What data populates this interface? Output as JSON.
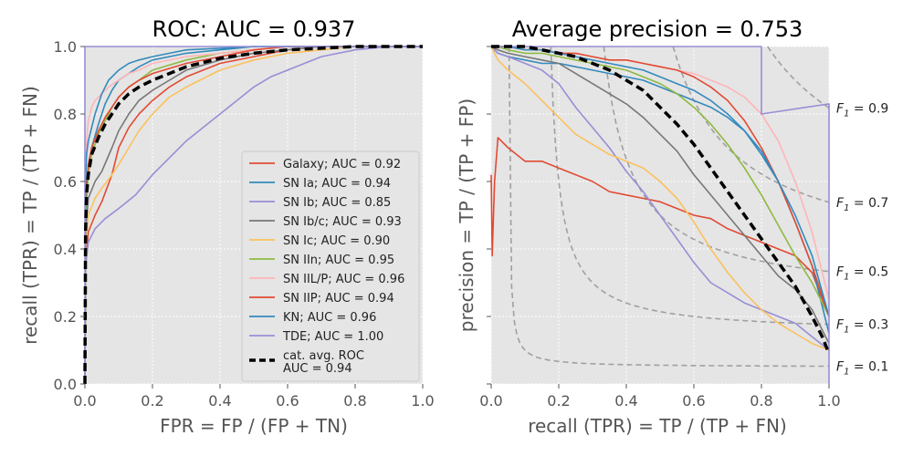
{
  "chart_data": [
    {
      "type": "line",
      "title": "ROC: AUC = 0.937",
      "xlabel": "FPR = FP / (FP + TN)",
      "ylabel": "recall (TPR) = TP / (TP + FN)",
      "xlim": [
        0,
        1
      ],
      "ylim": [
        0,
        1
      ],
      "xticks": [
        "0.0",
        "0.2",
        "0.4",
        "0.6",
        "0.8",
        "1.0"
      ],
      "yticks": [
        "0.0",
        "0.2",
        "0.4",
        "0.6",
        "0.8",
        "1.0"
      ],
      "grid": true,
      "legend": "lower-right",
      "series": [
        {
          "name": "Galaxy; AUC = 0.92",
          "color": "#E24A33",
          "x": [
            0,
            0.002,
            0.01,
            0.03,
            0.05,
            0.08,
            0.1,
            0.13,
            0.16,
            0.2,
            0.25,
            0.3,
            0.4,
            0.5,
            0.6,
            0.7,
            0.8,
            0.9,
            1.0
          ],
          "y": [
            0,
            0.35,
            0.45,
            0.5,
            0.54,
            0.62,
            0.7,
            0.76,
            0.8,
            0.84,
            0.88,
            0.91,
            0.95,
            0.97,
            0.99,
            1.0,
            1.0,
            1.0,
            1.0
          ]
        },
        {
          "name": "SN Ia; AUC = 0.94",
          "color": "#348ABD",
          "x": [
            0,
            0.002,
            0.01,
            0.02,
            0.04,
            0.06,
            0.08,
            0.1,
            0.13,
            0.16,
            0.2,
            0.3,
            0.4,
            0.5,
            0.6,
            0.8,
            1.0
          ],
          "y": [
            0,
            0.5,
            0.63,
            0.7,
            0.77,
            0.83,
            0.87,
            0.9,
            0.92,
            0.94,
            0.96,
            0.98,
            0.99,
            1.0,
            1.0,
            1.0,
            1.0
          ]
        },
        {
          "name": "SN Ib; AUC = 0.85",
          "color": "#988ED5",
          "x": [
            0,
            0.002,
            0.01,
            0.03,
            0.06,
            0.1,
            0.15,
            0.2,
            0.25,
            0.3,
            0.35,
            0.4,
            0.45,
            0.5,
            0.55,
            0.6,
            0.7,
            0.8,
            0.9,
            1.0
          ],
          "y": [
            0,
            0.35,
            0.42,
            0.46,
            0.49,
            0.52,
            0.56,
            0.62,
            0.67,
            0.72,
            0.76,
            0.8,
            0.84,
            0.88,
            0.91,
            0.93,
            0.97,
            0.99,
            1.0,
            1.0
          ]
        },
        {
          "name": "SN Ib/c; AUC = 0.93",
          "color": "#777777",
          "x": [
            0,
            0.002,
            0.01,
            0.03,
            0.05,
            0.08,
            0.1,
            0.13,
            0.16,
            0.2,
            0.25,
            0.3,
            0.4,
            0.5,
            0.6,
            0.7,
            0.8,
            1.0
          ],
          "y": [
            0,
            0.45,
            0.55,
            0.6,
            0.63,
            0.7,
            0.75,
            0.8,
            0.84,
            0.87,
            0.9,
            0.93,
            0.96,
            0.98,
            0.99,
            1.0,
            1.0,
            1.0
          ]
        },
        {
          "name": "SN Ic; AUC = 0.90",
          "color": "#FBC15E",
          "x": [
            0,
            0.002,
            0.01,
            0.03,
            0.05,
            0.08,
            0.1,
            0.13,
            0.16,
            0.2,
            0.25,
            0.3,
            0.4,
            0.5,
            0.6,
            0.7,
            0.8,
            0.9,
            1.0
          ],
          "y": [
            0,
            0.4,
            0.5,
            0.55,
            0.58,
            0.62,
            0.65,
            0.7,
            0.75,
            0.8,
            0.85,
            0.88,
            0.93,
            0.96,
            0.98,
            0.99,
            1.0,
            1.0,
            1.0
          ]
        },
        {
          "name": "SN IIn; AUC = 0.95",
          "color": "#8EBA42",
          "x": [
            0,
            0.002,
            0.01,
            0.02,
            0.04,
            0.06,
            0.08,
            0.1,
            0.13,
            0.16,
            0.2,
            0.3,
            0.4,
            0.5,
            0.6,
            0.8,
            1.0
          ],
          "y": [
            0,
            0.5,
            0.62,
            0.68,
            0.74,
            0.78,
            0.82,
            0.85,
            0.88,
            0.9,
            0.93,
            0.96,
            0.98,
            0.99,
            1.0,
            1.0,
            1.0
          ]
        },
        {
          "name": "SN IIL/P; AUC = 0.96",
          "color": "#FFB5B8",
          "x": [
            0,
            0.002,
            0.005,
            0.01,
            0.02,
            0.03,
            0.05,
            0.07,
            0.1,
            0.13,
            0.16,
            0.2,
            0.3,
            0.4,
            0.5,
            0.6,
            0.8,
            1.0
          ],
          "y": [
            0,
            0.6,
            0.72,
            0.78,
            0.82,
            0.84,
            0.86,
            0.88,
            0.9,
            0.92,
            0.93,
            0.95,
            0.97,
            0.98,
            0.99,
            1.0,
            1.0,
            1.0
          ]
        },
        {
          "name": "SN IIP; AUC = 0.94",
          "color": "#E24A33",
          "x": [
            0,
            0.002,
            0.01,
            0.02,
            0.04,
            0.06,
            0.08,
            0.1,
            0.13,
            0.16,
            0.2,
            0.3,
            0.4,
            0.5,
            0.6,
            0.8,
            1.0
          ],
          "y": [
            0,
            0.55,
            0.65,
            0.7,
            0.75,
            0.79,
            0.82,
            0.85,
            0.88,
            0.9,
            0.92,
            0.95,
            0.97,
            0.99,
            1.0,
            1.0,
            1.0
          ]
        },
        {
          "name": "KN; AUC = 0.96",
          "color": "#348ABD",
          "x": [
            0,
            0.002,
            0.005,
            0.01,
            0.02,
            0.03,
            0.05,
            0.07,
            0.1,
            0.13,
            0.16,
            0.2,
            0.25,
            0.3,
            0.4,
            0.5,
            0.6,
            0.8,
            1.0
          ],
          "y": [
            0,
            0.6,
            0.68,
            0.72,
            0.76,
            0.8,
            0.86,
            0.9,
            0.93,
            0.95,
            0.96,
            0.97,
            0.98,
            0.99,
            0.995,
            1.0,
            1.0,
            1.0,
            1.0
          ]
        },
        {
          "name": "TDE; AUC = 1.00",
          "color": "#988ED5",
          "x": [
            0,
            0,
            0.2,
            0.4,
            0.6,
            0.8,
            1.0
          ],
          "y": [
            0,
            1.0,
            1.0,
            1.0,
            1.0,
            1.0,
            1.0
          ]
        },
        {
          "name": "cat. avg. ROC\nAUC = 0.94",
          "color": "#000000",
          "dashed": true,
          "x": [
            0,
            0.002,
            0.005,
            0.01,
            0.02,
            0.04,
            0.06,
            0.08,
            0.1,
            0.13,
            0.16,
            0.2,
            0.25,
            0.3,
            0.4,
            0.5,
            0.6,
            0.7,
            0.8,
            1.0
          ],
          "y": [
            0,
            0.45,
            0.56,
            0.62,
            0.68,
            0.73,
            0.77,
            0.8,
            0.83,
            0.86,
            0.88,
            0.9,
            0.92,
            0.94,
            0.965,
            0.98,
            0.99,
            0.995,
            1.0,
            1.0
          ]
        }
      ]
    },
    {
      "type": "line",
      "title": "Average precision = 0.753",
      "xlabel": "recall (TPR) = TP / (TP + FN)",
      "ylabel": "precision = TP / (TP + FP)",
      "xlim": [
        0,
        1
      ],
      "ylim": [
        0,
        1
      ],
      "xticks": [
        "0.0",
        "0.2",
        "0.4",
        "0.6",
        "0.8",
        "1.0"
      ],
      "grid": true,
      "f1_labels": [
        "0.9",
        "0.7",
        "0.5",
        "0.3",
        "0.1"
      ],
      "f1_values": [
        0.9,
        0.7,
        0.5,
        0.3,
        0.1
      ],
      "series": [
        {
          "name": "Galaxy",
          "color": "#E24A33",
          "x": [
            0,
            0.003,
            0.01,
            0.02,
            0.05,
            0.1,
            0.15,
            0.2,
            0.25,
            0.3,
            0.35,
            0.4,
            0.45,
            0.5,
            0.55,
            0.6,
            0.65,
            0.7,
            0.75,
            0.8,
            0.85,
            0.9,
            0.95,
            1.0
          ],
          "y": [
            0.62,
            0.38,
            0.6,
            0.73,
            0.7,
            0.66,
            0.66,
            0.64,
            0.62,
            0.6,
            0.57,
            0.56,
            0.55,
            0.54,
            0.52,
            0.5,
            0.49,
            0.46,
            0.44,
            0.42,
            0.4,
            0.38,
            0.33,
            0.2
          ]
        },
        {
          "name": "SN Ia",
          "color": "#348ABD",
          "x": [
            0,
            0.02,
            0.05,
            0.1,
            0.15,
            0.2,
            0.25,
            0.3,
            0.35,
            0.4,
            0.45,
            0.5,
            0.55,
            0.6,
            0.65,
            0.7,
            0.75,
            0.8,
            0.85,
            0.9,
            0.95,
            1.0
          ],
          "y": [
            1.0,
            0.98,
            0.97,
            0.96,
            0.95,
            0.95,
            0.94,
            0.93,
            0.92,
            0.91,
            0.9,
            0.88,
            0.86,
            0.84,
            0.82,
            0.79,
            0.75,
            0.68,
            0.6,
            0.48,
            0.35,
            0.15
          ]
        },
        {
          "name": "SN Ib",
          "color": "#988ED5",
          "x": [
            0,
            0.02,
            0.05,
            0.1,
            0.15,
            0.2,
            0.25,
            0.3,
            0.35,
            0.4,
            0.45,
            0.5,
            0.55,
            0.6,
            0.65,
            0.7,
            0.75,
            0.8,
            0.85,
            0.9,
            0.95,
            1.0
          ],
          "y": [
            1.0,
            0.98,
            0.97,
            0.95,
            0.93,
            0.89,
            0.82,
            0.76,
            0.7,
            0.63,
            0.57,
            0.5,
            0.43,
            0.36,
            0.3,
            0.27,
            0.24,
            0.22,
            0.2,
            0.18,
            0.14,
            0.1
          ]
        },
        {
          "name": "SN Ib/c",
          "color": "#777777",
          "x": [
            0,
            0.02,
            0.05,
            0.1,
            0.15,
            0.2,
            0.25,
            0.3,
            0.35,
            0.4,
            0.45,
            0.5,
            0.55,
            0.6,
            0.65,
            0.7,
            0.75,
            0.8,
            0.85,
            0.9,
            0.95,
            1.0
          ],
          "y": [
            1.0,
            0.99,
            0.98,
            0.97,
            0.96,
            0.95,
            0.92,
            0.89,
            0.86,
            0.83,
            0.79,
            0.74,
            0.69,
            0.62,
            0.56,
            0.5,
            0.44,
            0.38,
            0.32,
            0.28,
            0.22,
            0.12
          ]
        },
        {
          "name": "SN Ic",
          "color": "#FBC15E",
          "x": [
            0,
            0.02,
            0.05,
            0.1,
            0.15,
            0.2,
            0.25,
            0.3,
            0.35,
            0.4,
            0.45,
            0.5,
            0.55,
            0.6,
            0.65,
            0.7,
            0.75,
            0.8,
            0.85,
            0.9,
            0.95,
            1.0
          ],
          "y": [
            1.0,
            0.96,
            0.93,
            0.89,
            0.84,
            0.79,
            0.74,
            0.71,
            0.68,
            0.66,
            0.64,
            0.6,
            0.55,
            0.48,
            0.4,
            0.33,
            0.27,
            0.22,
            0.18,
            0.15,
            0.12,
            0.1
          ]
        },
        {
          "name": "SN IIn",
          "color": "#8EBA42",
          "x": [
            0,
            0.02,
            0.05,
            0.1,
            0.15,
            0.2,
            0.25,
            0.3,
            0.35,
            0.4,
            0.45,
            0.5,
            0.55,
            0.6,
            0.65,
            0.7,
            0.75,
            0.8,
            0.85,
            0.9,
            0.95,
            1.0
          ],
          "y": [
            1.0,
            1.0,
            0.99,
            0.98,
            0.98,
            0.97,
            0.96,
            0.95,
            0.94,
            0.93,
            0.91,
            0.89,
            0.86,
            0.82,
            0.77,
            0.71,
            0.64,
            0.56,
            0.47,
            0.38,
            0.3,
            0.2
          ]
        },
        {
          "name": "SN IIL/P",
          "color": "#FFB5B8",
          "x": [
            0,
            0.02,
            0.05,
            0.1,
            0.15,
            0.2,
            0.25,
            0.3,
            0.35,
            0.4,
            0.45,
            0.5,
            0.55,
            0.6,
            0.65,
            0.7,
            0.75,
            0.8,
            0.85,
            0.9,
            0.95,
            1.0
          ],
          "y": [
            1.0,
            1.0,
            1.0,
            0.99,
            0.99,
            0.98,
            0.98,
            0.97,
            0.96,
            0.96,
            0.95,
            0.94,
            0.93,
            0.92,
            0.9,
            0.88,
            0.85,
            0.8,
            0.72,
            0.6,
            0.45,
            0.25
          ]
        },
        {
          "name": "SN IIP",
          "color": "#E24A33",
          "x": [
            0,
            0.02,
            0.05,
            0.1,
            0.15,
            0.2,
            0.25,
            0.3,
            0.35,
            0.4,
            0.45,
            0.5,
            0.55,
            0.6,
            0.65,
            0.7,
            0.75,
            0.8,
            0.85,
            0.9,
            0.95,
            1.0
          ],
          "y": [
            1.0,
            1.0,
            1.0,
            0.99,
            0.99,
            0.98,
            0.98,
            0.97,
            0.96,
            0.96,
            0.95,
            0.94,
            0.93,
            0.91,
            0.88,
            0.84,
            0.78,
            0.7,
            0.6,
            0.48,
            0.35,
            0.2
          ]
        },
        {
          "name": "KN",
          "color": "#348ABD",
          "x": [
            0,
            0.02,
            0.05,
            0.1,
            0.15,
            0.2,
            0.25,
            0.3,
            0.35,
            0.4,
            0.45,
            0.5,
            0.55,
            0.6,
            0.65,
            0.7,
            0.75,
            0.8,
            0.85,
            0.9,
            0.95,
            1.0
          ],
          "y": [
            1.0,
            1.0,
            1.0,
            0.99,
            0.99,
            0.98,
            0.97,
            0.96,
            0.95,
            0.94,
            0.93,
            0.91,
            0.89,
            0.87,
            0.84,
            0.8,
            0.75,
            0.69,
            0.6,
            0.5,
            0.38,
            0.2
          ]
        },
        {
          "name": "TDE",
          "color": "#988ED5",
          "x": [
            0,
            0.8,
            0.8,
            1.0,
            1.0
          ],
          "y": [
            1.0,
            1.0,
            0.8,
            0.83,
            0.0
          ]
        },
        {
          "name": "avg",
          "color": "#000000",
          "dashed": true,
          "x": [
            0,
            0.05,
            0.1,
            0.15,
            0.2,
            0.25,
            0.3,
            0.35,
            0.4,
            0.45,
            0.5,
            0.55,
            0.6,
            0.65,
            0.7,
            0.75,
            0.8,
            0.85,
            0.9,
            0.95,
            0.98,
            1.0
          ],
          "y": [
            1.0,
            1.0,
            1.0,
            0.99,
            0.98,
            0.97,
            0.95,
            0.93,
            0.9,
            0.87,
            0.82,
            0.77,
            0.71,
            0.64,
            0.57,
            0.5,
            0.43,
            0.36,
            0.29,
            0.2,
            0.14,
            0.09
          ]
        }
      ]
    }
  ]
}
